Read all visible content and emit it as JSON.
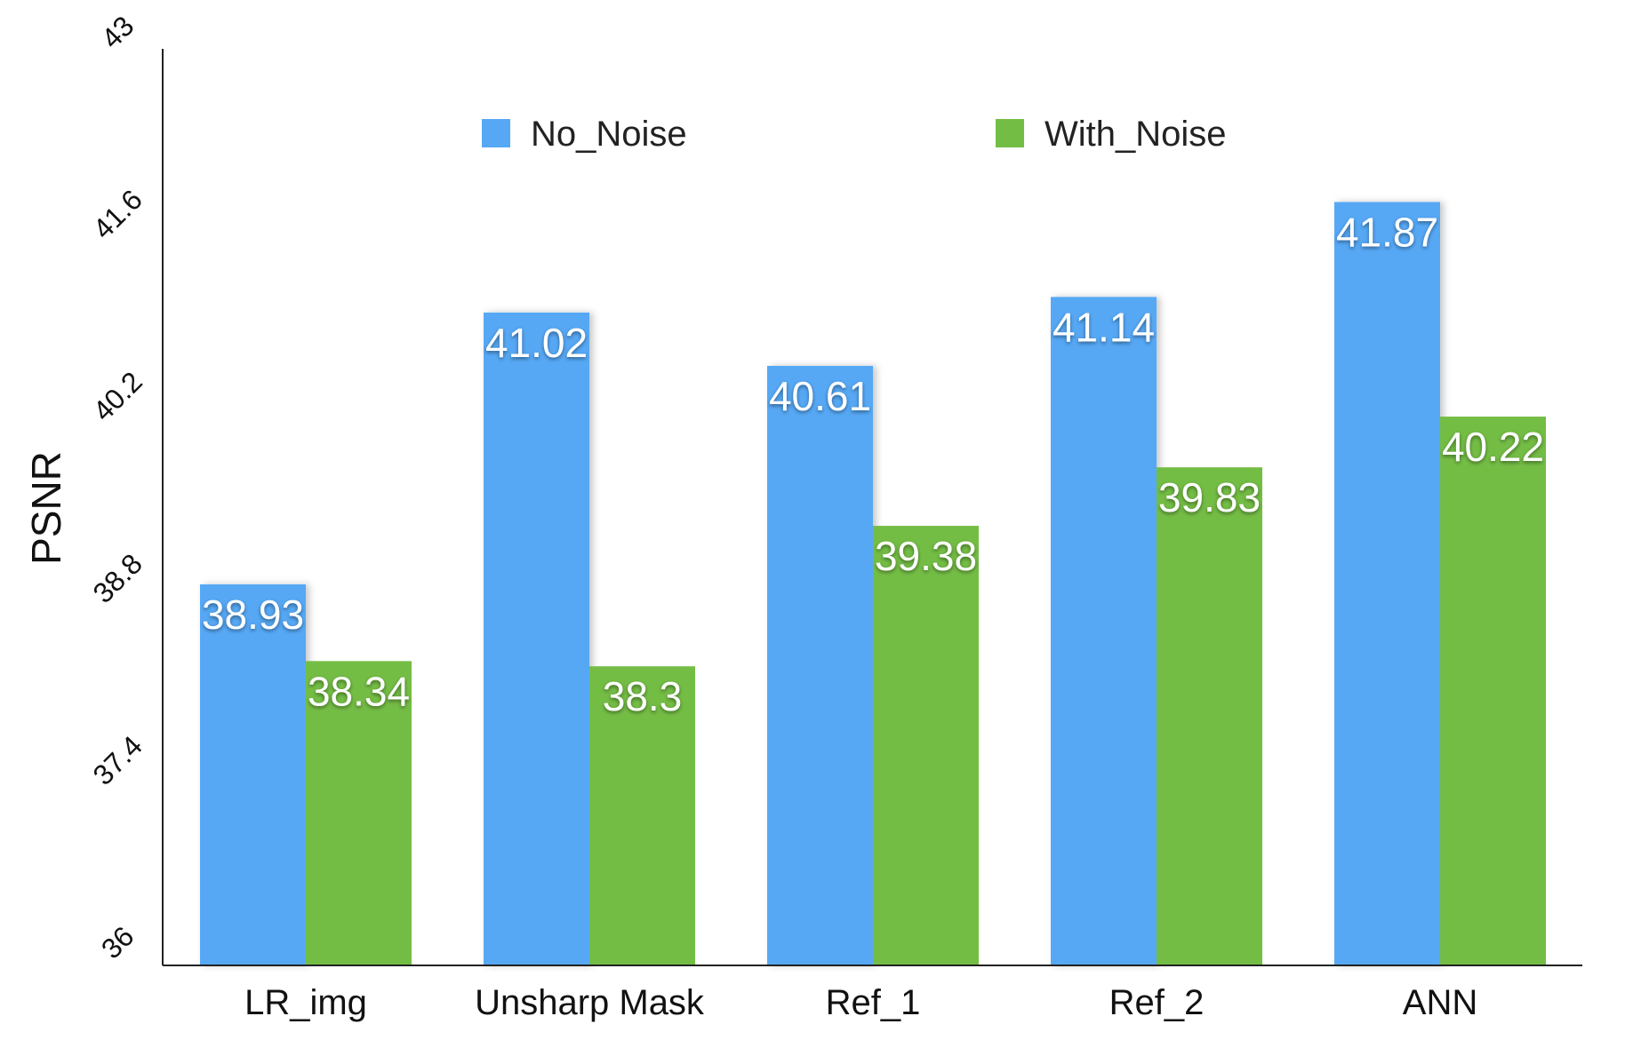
{
  "chart_data": {
    "type": "bar",
    "title": "",
    "xlabel": "",
    "ylabel": "PSNR",
    "ylim": [
      36,
      43
    ],
    "yticks": [
      "36",
      "37.4",
      "38.8",
      "40.2",
      "41.6",
      "43"
    ],
    "categories": [
      "LR_img",
      "Unsharp Mask",
      "Ref_1",
      "Ref_2",
      "ANN"
    ],
    "series": [
      {
        "name": "No_Noise",
        "color": "#56A8F5",
        "values": [
          38.93,
          41.02,
          40.61,
          41.14,
          41.87
        ],
        "labels": [
          "38.93",
          "41.02",
          "40.61",
          "41.14",
          "41.87"
        ]
      },
      {
        "name": "With_Noise",
        "color": "#74BD45",
        "values": [
          38.34,
          38.3,
          39.38,
          39.83,
          40.22
        ],
        "labels": [
          "38.34",
          "38.3",
          "39.38",
          "39.83",
          "40.22"
        ]
      }
    ],
    "legend": "top",
    "grid": false
  }
}
